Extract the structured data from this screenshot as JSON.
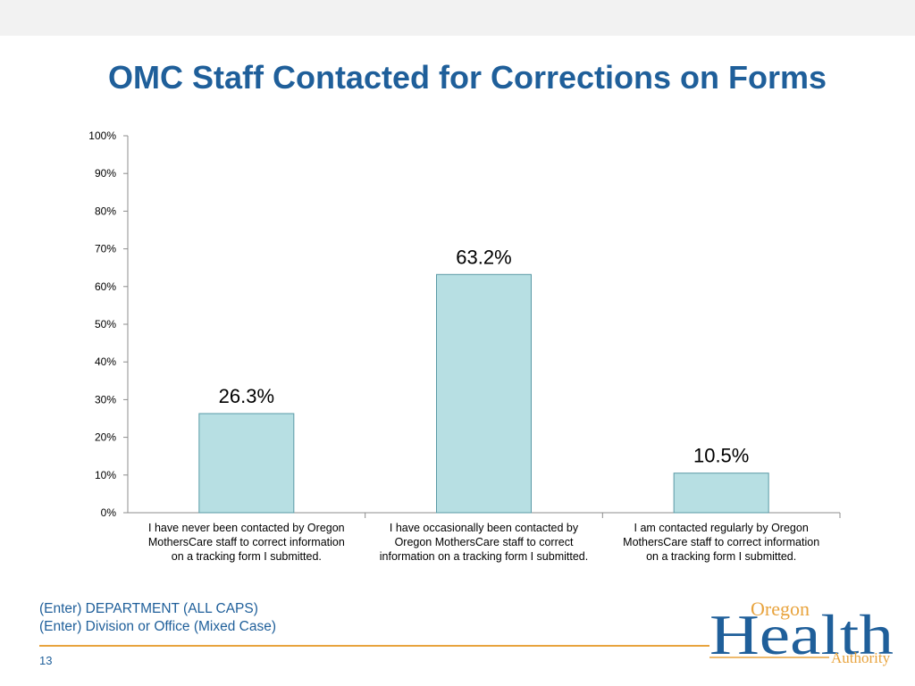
{
  "slide": {
    "title": "OMC Staff Contacted for Corrections on Forms",
    "footer_department": "(Enter) DEPARTMENT (ALL CAPS)",
    "footer_division": "(Enter) Division or Office (Mixed Case)",
    "page_number": "13"
  },
  "logo": {
    "word_oregon": "Oregon",
    "word_health": "Health",
    "word_authority": "Authority"
  },
  "colors": {
    "title": "#1f5f9a",
    "bar_fill": "#b7dfe3",
    "bar_stroke": "#5a9aa6",
    "accent_orange": "#e8a33d"
  },
  "chart_data": {
    "type": "bar",
    "categories": [
      [
        "I have never been contacted by Oregon",
        "MothersCare staff to correct information",
        "on a tracking form I submitted."
      ],
      [
        "I have occasionally been contacted by",
        "Oregon MothersCare staff to correct",
        "information on a tracking form I submitted."
      ],
      [
        "I am contacted regularly by Oregon",
        "MothersCare staff to correct information",
        "on a tracking form I submitted."
      ]
    ],
    "values": [
      26.3,
      63.2,
      10.5
    ],
    "value_labels": [
      "26.3%",
      "63.2%",
      "10.5%"
    ],
    "ylim": [
      0,
      100
    ],
    "y_ticks": [
      0,
      10,
      20,
      30,
      40,
      50,
      60,
      70,
      80,
      90,
      100
    ],
    "y_tick_labels": [
      "0%",
      "10%",
      "20%",
      "30%",
      "40%",
      "50%",
      "60%",
      "70%",
      "80%",
      "90%",
      "100%"
    ],
    "grid": false,
    "legend": "none"
  }
}
